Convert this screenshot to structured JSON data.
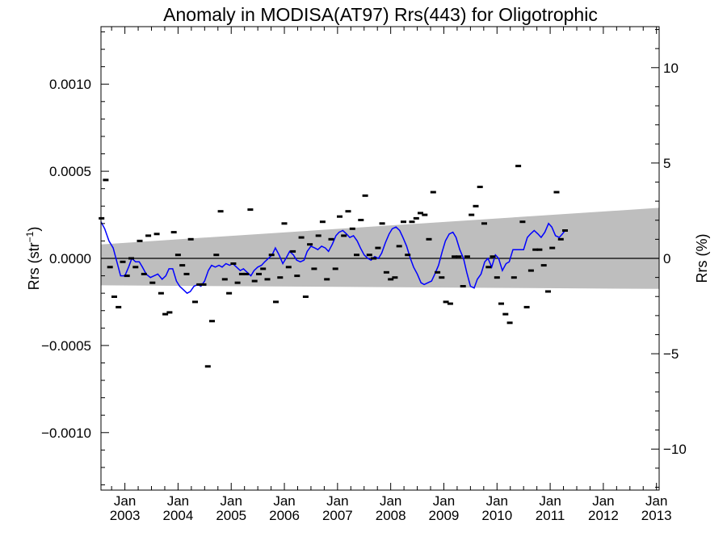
{
  "chart_data": {
    "type": "scatter",
    "title": "Anomaly in MODISA(AT97) Rrs(443) for Oligotrophic",
    "ylabel_left_main": "Rrs (str",
    "ylabel_left_sup": "−1",
    "ylabel_left_close": ")",
    "ylabel_right": "Rrs (%)",
    "xlim": [
      2002.55,
      2013.05
    ],
    "ylim_left": [
      -0.00133,
      0.00133
    ],
    "ylim_right": [
      -12.15,
      12.15
    ],
    "x_ticks": [
      {
        "value": 2003.0,
        "month": "Jan",
        "year": "2003"
      },
      {
        "value": 2004.0,
        "month": "Jan",
        "year": "2004"
      },
      {
        "value": 2005.0,
        "month": "Jan",
        "year": "2005"
      },
      {
        "value": 2006.0,
        "month": "Jan",
        "year": "2006"
      },
      {
        "value": 2007.0,
        "month": "Jan",
        "year": "2007"
      },
      {
        "value": 2008.0,
        "month": "Jan",
        "year": "2008"
      },
      {
        "value": 2009.0,
        "month": "Jan",
        "year": "2009"
      },
      {
        "value": 2010.0,
        "month": "Jan",
        "year": "2010"
      },
      {
        "value": 2011.0,
        "month": "Jan",
        "year": "2011"
      },
      {
        "value": 2012.0,
        "month": "Jan",
        "year": "2012"
      },
      {
        "value": 2013.0,
        "month": "Jan",
        "year": "2013"
      }
    ],
    "y_ticks_left": [
      {
        "value": 0.001,
        "label": "0.0010"
      },
      {
        "value": 0.0005,
        "label": "0.0005"
      },
      {
        "value": 0.0,
        "label": "0.0000"
      },
      {
        "value": -0.0005,
        "label": "−0.0005"
      },
      {
        "value": -0.001,
        "label": "−0.0010"
      }
    ],
    "y_ticks_right": [
      {
        "value": 10,
        "label": "10"
      },
      {
        "value": 5,
        "label": "5"
      },
      {
        "value": 0,
        "label": "0"
      },
      {
        "value": -5,
        "label": "−5"
      },
      {
        "value": -10,
        "label": "−10"
      }
    ],
    "band": {
      "x": [
        2002.55,
        2013.05
      ],
      "upper": [
        8e-05,
        0.00029
      ],
      "lower": [
        -0.000155,
        -0.000175
      ],
      "color": "#bebebe"
    },
    "zero_line": 0.0,
    "colors": {
      "points": "#000000",
      "smooth": "#0000ff",
      "band": "#bebebe"
    },
    "points": [
      [
        2002.56,
        0.00023
      ],
      [
        2002.64,
        0.00045
      ],
      [
        2002.72,
        -5e-05
      ],
      [
        2002.8,
        -0.00022
      ],
      [
        2002.88,
        -0.00028
      ],
      [
        2002.96,
        -2e-05
      ],
      [
        2003.04,
        -0.0001
      ],
      [
        2003.12,
        0.0
      ],
      [
        2003.2,
        -5e-05
      ],
      [
        2003.28,
        0.0001
      ],
      [
        2003.36,
        -9e-05
      ],
      [
        2003.44,
        0.00013
      ],
      [
        2003.52,
        -0.00014
      ],
      [
        2003.6,
        0.00014
      ],
      [
        2003.68,
        -0.0002
      ],
      [
        2003.76,
        -0.00032
      ],
      [
        2003.84,
        -0.00031
      ],
      [
        2003.92,
        0.00015
      ],
      [
        2004.0,
        2e-05
      ],
      [
        2004.08,
        -4e-05
      ],
      [
        2004.16,
        -9e-05
      ],
      [
        2004.24,
        0.00011
      ],
      [
        2004.32,
        -0.00025
      ],
      [
        2004.4,
        -0.00015
      ],
      [
        2004.48,
        -0.00015
      ],
      [
        2004.56,
        -0.00062
      ],
      [
        2004.64,
        -0.00036
      ],
      [
        2004.72,
        2e-05
      ],
      [
        2004.8,
        0.00027
      ],
      [
        2004.88,
        -0.00012
      ],
      [
        2004.96,
        -0.0002
      ],
      [
        2005.04,
        -3e-05
      ],
      [
        2005.12,
        -0.00014
      ],
      [
        2005.2,
        -9e-05
      ],
      [
        2005.28,
        -9e-05
      ],
      [
        2005.36,
        0.00028
      ],
      [
        2005.44,
        -0.00013
      ],
      [
        2005.52,
        -9e-05
      ],
      [
        2005.6,
        -6e-05
      ],
      [
        2005.68,
        -0.00012
      ],
      [
        2005.76,
        2e-05
      ],
      [
        2005.84,
        -0.00025
      ],
      [
        2005.92,
        -0.00011
      ],
      [
        2006.0,
        0.0002
      ],
      [
        2006.08,
        -5e-05
      ],
      [
        2006.16,
        4e-05
      ],
      [
        2006.24,
        -0.0001
      ],
      [
        2006.32,
        0.00012
      ],
      [
        2006.4,
        -0.00022
      ],
      [
        2006.48,
        8e-05
      ],
      [
        2006.56,
        -6e-05
      ],
      [
        2006.64,
        0.00013
      ],
      [
        2006.72,
        0.00021
      ],
      [
        2006.8,
        -0.00012
      ],
      [
        2006.88,
        0.00011
      ],
      [
        2006.96,
        -6e-05
      ],
      [
        2007.04,
        0.00024
      ],
      [
        2007.12,
        0.00013
      ],
      [
        2007.2,
        0.00027
      ],
      [
        2007.28,
        0.00017
      ],
      [
        2007.36,
        2e-05
      ],
      [
        2007.44,
        0.00022
      ],
      [
        2007.52,
        0.00036
      ],
      [
        2007.6,
        2e-05
      ],
      [
        2007.68,
        0.0
      ],
      [
        2007.76,
        6e-05
      ],
      [
        2007.84,
        0.0002
      ],
      [
        2007.92,
        -8e-05
      ],
      [
        2008.0,
        -0.00012
      ],
      [
        2008.08,
        -0.00011
      ],
      [
        2008.16,
        7e-05
      ],
      [
        2008.24,
        0.00021
      ],
      [
        2008.32,
        2e-05
      ],
      [
        2008.4,
        0.00021
      ],
      [
        2008.48,
        0.00023
      ],
      [
        2008.56,
        0.00026
      ],
      [
        2008.64,
        0.00025
      ],
      [
        2008.72,
        0.00011
      ],
      [
        2008.8,
        0.00038
      ],
      [
        2008.88,
        -8e-05
      ],
      [
        2008.96,
        -0.00011
      ],
      [
        2009.04,
        -0.00025
      ],
      [
        2009.12,
        -0.00026
      ],
      [
        2009.2,
        1e-05
      ],
      [
        2009.28,
        1e-05
      ],
      [
        2009.36,
        -0.00016
      ],
      [
        2009.44,
        1e-05
      ],
      [
        2009.52,
        0.00025
      ],
      [
        2009.6,
        0.0003
      ],
      [
        2009.68,
        0.00041
      ],
      [
        2009.76,
        0.0002
      ],
      [
        2009.84,
        -5e-05
      ],
      [
        2009.92,
        1e-05
      ],
      [
        2010.0,
        -0.00011
      ],
      [
        2010.08,
        -0.00026
      ],
      [
        2010.16,
        -0.00032
      ],
      [
        2010.24,
        -0.00037
      ],
      [
        2010.32,
        -0.00011
      ],
      [
        2010.4,
        0.00053
      ],
      [
        2010.48,
        0.00021
      ],
      [
        2010.56,
        -0.00028
      ],
      [
        2010.64,
        -7e-05
      ],
      [
        2010.72,
        5e-05
      ],
      [
        2010.8,
        5e-05
      ],
      [
        2010.88,
        -4e-05
      ],
      [
        2010.96,
        -0.00019
      ],
      [
        2011.04,
        6e-05
      ],
      [
        2011.12,
        0.00038
      ],
      [
        2011.2,
        0.00011
      ],
      [
        2011.28,
        0.00016
      ]
    ],
    "smooth": [
      [
        2002.55,
        0.00021
      ],
      [
        2002.62,
        0.00017
      ],
      [
        2002.7,
        0.0001
      ],
      [
        2002.78,
        6e-05
      ],
      [
        2002.85,
        -2e-05
      ],
      [
        2002.92,
        -0.0001
      ],
      [
        2003.0,
        -0.0001
      ],
      [
        2003.07,
        -5e-05
      ],
      [
        2003.13,
        0.0
      ],
      [
        2003.2,
        -2e-05
      ],
      [
        2003.27,
        -2e-05
      ],
      [
        2003.33,
        -5e-05
      ],
      [
        2003.4,
        -9e-05
      ],
      [
        2003.48,
        -0.00011
      ],
      [
        2003.55,
        -0.0001
      ],
      [
        2003.62,
        -9e-05
      ],
      [
        2003.7,
        -0.00012
      ],
      [
        2003.77,
        -0.0001
      ],
      [
        2003.83,
        -6e-05
      ],
      [
        2003.9,
        -6e-05
      ],
      [
        2003.97,
        -0.00013
      ],
      [
        2004.03,
        -0.00016
      ],
      [
        2004.1,
        -0.00018
      ],
      [
        2004.17,
        -0.0002
      ],
      [
        2004.23,
        -0.00019
      ],
      [
        2004.3,
        -0.00016
      ],
      [
        2004.37,
        -0.00015
      ],
      [
        2004.43,
        -0.00016
      ],
      [
        2004.5,
        -0.00013
      ],
      [
        2004.57,
        -7e-05
      ],
      [
        2004.63,
        -4e-05
      ],
      [
        2004.7,
        -5e-05
      ],
      [
        2004.77,
        -4e-05
      ],
      [
        2004.83,
        -5e-05
      ],
      [
        2004.9,
        -3e-05
      ],
      [
        2004.97,
        -4e-05
      ],
      [
        2005.03,
        -3e-05
      ],
      [
        2005.1,
        -5e-05
      ],
      [
        2005.17,
        -7e-05
      ],
      [
        2005.23,
        -6e-05
      ],
      [
        2005.3,
        -8e-05
      ],
      [
        2005.37,
        -0.0001
      ],
      [
        2005.43,
        -7e-05
      ],
      [
        2005.5,
        -5e-05
      ],
      [
        2005.57,
        -4e-05
      ],
      [
        2005.63,
        -2e-05
      ],
      [
        2005.7,
        0.0
      ],
      [
        2005.77,
        2e-05
      ],
      [
        2005.83,
        6e-05
      ],
      [
        2005.9,
        2e-05
      ],
      [
        2005.97,
        -3e-05
      ],
      [
        2006.03,
        0.0
      ],
      [
        2006.1,
        4e-05
      ],
      [
        2006.17,
        2e-05
      ],
      [
        2006.23,
        -1e-05
      ],
      [
        2006.3,
        -2e-05
      ],
      [
        2006.37,
        -1e-05
      ],
      [
        2006.43,
        4e-05
      ],
      [
        2006.5,
        7e-05
      ],
      [
        2006.57,
        6e-05
      ],
      [
        2006.63,
        5e-05
      ],
      [
        2006.7,
        7e-05
      ],
      [
        2006.77,
        6e-05
      ],
      [
        2006.83,
        4e-05
      ],
      [
        2006.9,
        8e-05
      ],
      [
        2006.97,
        0.00013
      ],
      [
        2007.03,
        0.00015
      ],
      [
        2007.1,
        0.00016
      ],
      [
        2007.17,
        0.00014
      ],
      [
        2007.23,
        0.00012
      ],
      [
        2007.3,
        0.00013
      ],
      [
        2007.37,
        0.0001
      ],
      [
        2007.43,
        6e-05
      ],
      [
        2007.5,
        2e-05
      ],
      [
        2007.57,
        0.0
      ],
      [
        2007.63,
        -1e-05
      ],
      [
        2007.7,
        1e-05
      ],
      [
        2007.77,
        0.0
      ],
      [
        2007.83,
        3e-05
      ],
      [
        2007.9,
        9e-05
      ],
      [
        2007.97,
        0.00014
      ],
      [
        2008.03,
        0.00017
      ],
      [
        2008.1,
        0.00018
      ],
      [
        2008.17,
        0.00016
      ],
      [
        2008.23,
        0.00012
      ],
      [
        2008.3,
        7e-05
      ],
      [
        2008.37,
        0.0
      ],
      [
        2008.43,
        -5e-05
      ],
      [
        2008.5,
        -9e-05
      ],
      [
        2008.57,
        -0.00014
      ],
      [
        2008.63,
        -0.00015
      ],
      [
        2008.7,
        -0.00014
      ],
      [
        2008.77,
        -0.00013
      ],
      [
        2008.83,
        -9e-05
      ],
      [
        2008.9,
        -4e-05
      ],
      [
        2008.97,
        4e-05
      ],
      [
        2009.03,
        0.0001
      ],
      [
        2009.1,
        0.00014
      ],
      [
        2009.17,
        0.00015
      ],
      [
        2009.23,
        0.00012
      ],
      [
        2009.3,
        5e-05
      ],
      [
        2009.37,
        0.0
      ],
      [
        2009.43,
        -8e-05
      ],
      [
        2009.5,
        -0.00016
      ],
      [
        2009.57,
        -0.00017
      ],
      [
        2009.63,
        -0.00012
      ],
      [
        2009.7,
        -9e-05
      ],
      [
        2009.77,
        -2e-05
      ],
      [
        2009.83,
        0.0
      ],
      [
        2009.9,
        -5e-05
      ],
      [
        2009.97,
        2e-05
      ],
      [
        2010.03,
        0.0
      ],
      [
        2010.1,
        -7e-05
      ],
      [
        2010.17,
        -3e-05
      ],
      [
        2010.23,
        -2e-05
      ],
      [
        2010.3,
        5e-05
      ],
      [
        2010.37,
        5e-05
      ],
      [
        2010.43,
        5e-05
      ],
      [
        2010.5,
        5e-05
      ],
      [
        2010.57,
        0.00012
      ],
      [
        2010.63,
        0.00014
      ],
      [
        2010.7,
        0.00016
      ],
      [
        2010.77,
        0.00014
      ],
      [
        2010.83,
        0.00012
      ],
      [
        2010.9,
        0.00015
      ],
      [
        2010.97,
        0.0002
      ],
      [
        2011.03,
        0.00018
      ],
      [
        2011.1,
        0.00013
      ],
      [
        2011.17,
        0.00012
      ],
      [
        2011.23,
        0.00014
      ],
      [
        2011.28,
        0.00016
      ]
    ]
  }
}
